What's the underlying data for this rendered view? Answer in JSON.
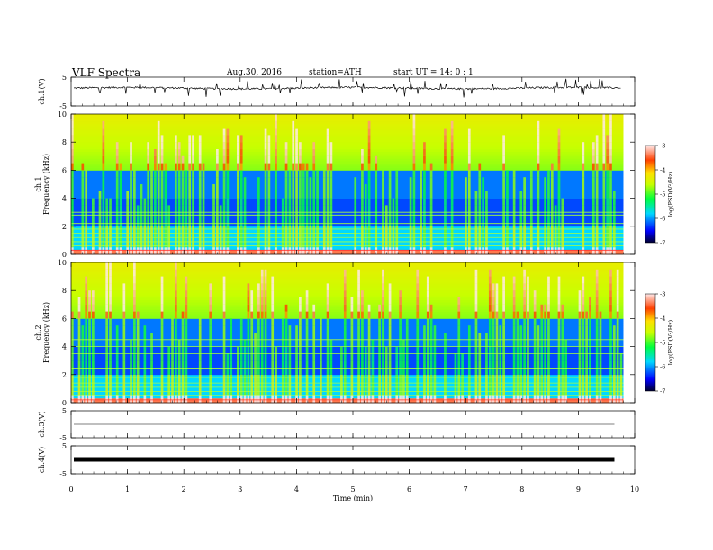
{
  "header": {
    "title": "VLF  Spectra",
    "date": "Aug.30, 2016",
    "station": "station=ATH",
    "start": "start  UT =   14: 0  : 1"
  },
  "chart_data": [
    {
      "type": "line",
      "ylabel": "ch.1(V)",
      "ylim": [
        -5,
        5
      ],
      "y_ticks": [
        5,
        -5
      ],
      "trace": {
        "baseline": 1.2,
        "amplitude": 0.6,
        "spikes": "frequent"
      }
    },
    {
      "type": "heatmap",
      "ylabel": "ch.1\nFrequency  (kHz)",
      "ylim": [
        0,
        10
      ],
      "y_ticks": [
        0,
        2,
        4,
        6,
        8,
        10
      ],
      "colorbar": {
        "label": "log(PSD(V²/Hz)",
        "range": [
          -7,
          -3
        ],
        "ticks": [
          -3,
          -4,
          -5,
          -6,
          -7
        ]
      }
    },
    {
      "type": "heatmap",
      "ylabel": "ch.2\nFrequency  (kHz)",
      "ylim": [
        0,
        10
      ],
      "y_ticks": [
        0,
        2,
        4,
        6,
        8,
        10
      ],
      "colorbar": {
        "label": "log(PSD(V²/Hz)",
        "range": [
          -7,
          -3
        ],
        "ticks": [
          -3,
          -4,
          -5,
          -6,
          -7
        ]
      }
    },
    {
      "type": "line",
      "ylabel": "ch.3(V)",
      "ylim": [
        -5,
        5
      ],
      "y_ticks": [
        5,
        -5
      ],
      "trace": {
        "baseline": 0.0,
        "amplitude": 0.0
      }
    },
    {
      "type": "line",
      "ylabel": "ch.4(V)",
      "ylim": [
        -5,
        5
      ],
      "y_ticks": [
        5,
        -5
      ],
      "trace": {
        "baseline": 0.0,
        "amplitude": 0.0,
        "thick": true
      }
    }
  ],
  "x_axis": {
    "label": "Time  (min)",
    "range": [
      0,
      10
    ],
    "ticks": [
      0,
      1,
      2,
      3,
      4,
      5,
      6,
      7,
      8,
      9,
      10
    ],
    "data_end": 9.8
  }
}
